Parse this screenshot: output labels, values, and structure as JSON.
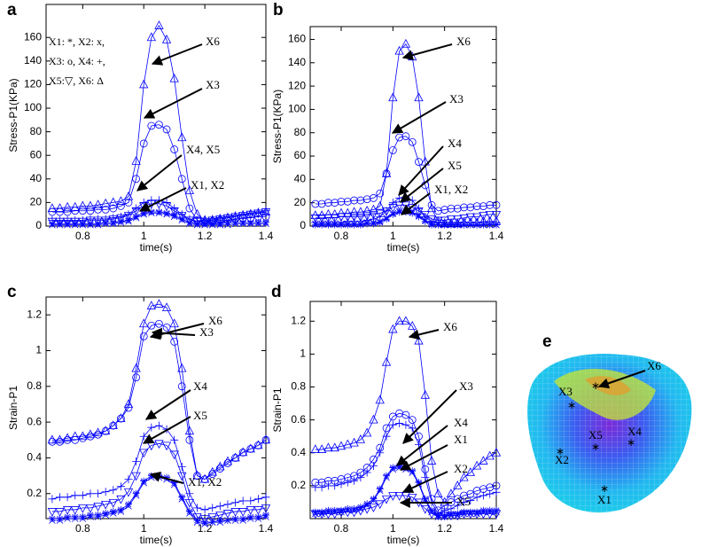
{
  "chart_data": [
    {
      "type": "line",
      "panel_label": "a",
      "y_label": "Stress-P1(KPa)",
      "x_label": "time(s)",
      "xlim": [
        0.68,
        1.4
      ],
      "xticks": [
        0.8,
        1,
        1.2,
        1.4
      ],
      "ylim": [
        0,
        188
      ],
      "yticks": [
        0,
        20,
        40,
        60,
        80,
        100,
        120,
        140,
        160
      ],
      "note": [
        "X1: *, X2: x,",
        "X3: o,  X4: +,",
        "X5:▽, X6: Δ"
      ],
      "annotations": [
        "X6",
        "X3",
        "X4, X5",
        "X1, X2"
      ],
      "x": [
        0.7,
        0.725,
        0.75,
        0.775,
        0.8,
        0.825,
        0.85,
        0.875,
        0.9,
        0.925,
        0.95,
        0.975,
        1.0,
        1.025,
        1.05,
        1.075,
        1.1,
        1.125,
        1.15,
        1.175,
        1.2,
        1.225,
        1.25,
        1.275,
        1.3,
        1.325,
        1.35,
        1.375,
        1.4
      ],
      "series": [
        {
          "marker": "triangle",
          "color": "#0000ff",
          "values": [
            15,
            15,
            16,
            16,
            17,
            17,
            18,
            19,
            20,
            21,
            25,
            55,
            120,
            160,
            170,
            158,
            125,
            75,
            30,
            10,
            5,
            5,
            6,
            7,
            8,
            9,
            10,
            11,
            12
          ]
        },
        {
          "marker": "circle",
          "color": "#0000ff",
          "values": [
            12,
            12,
            12,
            13,
            13,
            13,
            14,
            14,
            15,
            17,
            20,
            40,
            70,
            85,
            86,
            82,
            65,
            40,
            15,
            5,
            3,
            4,
            5,
            5,
            6,
            7,
            7,
            8,
            8
          ]
        },
        {
          "marker": "plus",
          "color": "#0000ff",
          "values": [
            5,
            5,
            5,
            5,
            5,
            6,
            6,
            6,
            7,
            8,
            10,
            15,
            20,
            22,
            22,
            20,
            15,
            10,
            6,
            4,
            5,
            6,
            7,
            8,
            9,
            10,
            11,
            12,
            13
          ]
        },
        {
          "marker": "down",
          "color": "#0000ff",
          "values": [
            4,
            4,
            4,
            4,
            4,
            5,
            5,
            5,
            6,
            7,
            9,
            13,
            17,
            19,
            19,
            17,
            13,
            9,
            5,
            4,
            4,
            5,
            6,
            7,
            8,
            9,
            10,
            11,
            12
          ]
        },
        {
          "marker": "star",
          "color": "#0000ff",
          "values": [
            2,
            2,
            2,
            2,
            2,
            2,
            2,
            3,
            3,
            4,
            5,
            8,
            11,
            12,
            12,
            11,
            9,
            6,
            3,
            2,
            2,
            2,
            2,
            3,
            3,
            3,
            3,
            3,
            3
          ]
        },
        {
          "marker": "x",
          "color": "#0000ff",
          "values": [
            1,
            1,
            1,
            1,
            1,
            1,
            1,
            2,
            2,
            3,
            4,
            7,
            10,
            11,
            11,
            10,
            8,
            5,
            2,
            1,
            1,
            1,
            1,
            1,
            2,
            2,
            2,
            2,
            2
          ]
        }
      ]
    },
    {
      "type": "line",
      "panel_label": "b",
      "y_label": "Stress-P1(KPa)",
      "x_label": "time(s)",
      "xlim": [
        0.68,
        1.4
      ],
      "xticks": [
        0.8,
        1,
        1.2,
        1.4
      ],
      "ylim": [
        0,
        171
      ],
      "yticks": [
        0,
        20,
        40,
        60,
        80,
        100,
        120,
        140,
        160
      ],
      "annotations": [
        "X6",
        "X3",
        "X4",
        "X5",
        "X1, X2"
      ],
      "x": [
        0.7,
        0.725,
        0.75,
        0.775,
        0.8,
        0.825,
        0.85,
        0.875,
        0.9,
        0.925,
        0.95,
        0.975,
        1.0,
        1.025,
        1.05,
        1.075,
        1.1,
        1.125,
        1.15,
        1.175,
        1.2,
        1.225,
        1.25,
        1.275,
        1.3,
        1.325,
        1.35,
        1.375,
        1.4
      ],
      "series": [
        {
          "marker": "triangle",
          "color": "#0000ff",
          "values": [
            9,
            9,
            10,
            10,
            11,
            11,
            12,
            12,
            13,
            14,
            17,
            45,
            110,
            150,
            156,
            145,
            110,
            55,
            15,
            4,
            2,
            2,
            2,
            3,
            3,
            3,
            4,
            4,
            4
          ]
        },
        {
          "marker": "circle",
          "color": "#0000ff",
          "values": [
            19,
            19,
            20,
            20,
            21,
            21,
            22,
            22,
            23,
            24,
            28,
            45,
            65,
            76,
            77,
            72,
            55,
            35,
            18,
            13,
            14,
            15,
            15,
            16,
            16,
            17,
            17,
            18,
            18
          ]
        },
        {
          "marker": "plus",
          "color": "#0000ff",
          "values": [
            3,
            3,
            3,
            3,
            3,
            4,
            4,
            4,
            5,
            6,
            8,
            13,
            20,
            24,
            25,
            22,
            15,
            8,
            4,
            3,
            3,
            3,
            3,
            3,
            3,
            3,
            3,
            3,
            3
          ]
        },
        {
          "marker": "down",
          "color": "#0000ff",
          "values": [
            7,
            7,
            7,
            7,
            8,
            8,
            8,
            8,
            9,
            10,
            11,
            13,
            16,
            18,
            18,
            16,
            13,
            10,
            6,
            5,
            5,
            6,
            6,
            7,
            8,
            8,
            9,
            10,
            10
          ]
        },
        {
          "marker": "star",
          "color": "#0000ff",
          "values": [
            1,
            1,
            1,
            1,
            1,
            1,
            1,
            1,
            2,
            2,
            3,
            6,
            10,
            12,
            12,
            11,
            8,
            4,
            1,
            1,
            1,
            1,
            1,
            1,
            1,
            1,
            1,
            1,
            1
          ]
        },
        {
          "marker": "x",
          "color": "#0000ff",
          "values": [
            2,
            2,
            2,
            2,
            2,
            2,
            2,
            2,
            3,
            3,
            4,
            7,
            11,
            13,
            13,
            12,
            9,
            5,
            2,
            1,
            1,
            1,
            1,
            1,
            1,
            1,
            1,
            1,
            1
          ]
        }
      ]
    },
    {
      "type": "line",
      "panel_label": "c",
      "y_label": "Strain-P1",
      "x_label": "time(s)",
      "xlim": [
        0.68,
        1.4
      ],
      "xticks": [
        0.8,
        1,
        1.2,
        1.4
      ],
      "ylim": [
        0.06,
        1.3
      ],
      "yticks": [
        0.2,
        0.4,
        0.6,
        0.8,
        1,
        1.2
      ],
      "annotations": [
        "X6",
        "X3",
        "X4",
        "X5",
        "X1, X2"
      ],
      "x": [
        0.7,
        0.725,
        0.75,
        0.775,
        0.8,
        0.825,
        0.85,
        0.875,
        0.9,
        0.925,
        0.95,
        0.975,
        1.0,
        1.025,
        1.05,
        1.075,
        1.1,
        1.125,
        1.15,
        1.175,
        1.2,
        1.225,
        1.25,
        1.275,
        1.3,
        1.325,
        1.35,
        1.375,
        1.4
      ],
      "series": [
        {
          "marker": "triangle",
          "color": "#0000ff",
          "values": [
            0.5,
            0.5,
            0.51,
            0.52,
            0.52,
            0.53,
            0.54,
            0.55,
            0.58,
            0.62,
            0.7,
            0.9,
            1.15,
            1.25,
            1.26,
            1.24,
            1.15,
            0.9,
            0.55,
            0.3,
            0.28,
            0.32,
            0.35,
            0.38,
            0.4,
            0.43,
            0.45,
            0.47,
            0.5
          ]
        },
        {
          "marker": "circle",
          "color": "#0000ff",
          "values": [
            0.49,
            0.49,
            0.5,
            0.5,
            0.51,
            0.52,
            0.53,
            0.55,
            0.58,
            0.62,
            0.68,
            0.85,
            1.08,
            1.14,
            1.15,
            1.13,
            1.05,
            0.8,
            0.5,
            0.3,
            0.28,
            0.31,
            0.34,
            0.37,
            0.4,
            0.43,
            0.45,
            0.47,
            0.5
          ]
        },
        {
          "marker": "plus",
          "color": "#0000ff",
          "values": [
            0.17,
            0.18,
            0.18,
            0.19,
            0.19,
            0.2,
            0.2,
            0.21,
            0.22,
            0.24,
            0.28,
            0.38,
            0.52,
            0.57,
            0.58,
            0.56,
            0.5,
            0.35,
            0.2,
            0.12,
            0.11,
            0.12,
            0.13,
            0.14,
            0.15,
            0.16,
            0.16,
            0.17,
            0.18
          ]
        },
        {
          "marker": "down",
          "color": "#0000ff",
          "values": [
            0.1,
            0.1,
            0.11,
            0.11,
            0.12,
            0.12,
            0.13,
            0.14,
            0.15,
            0.17,
            0.21,
            0.3,
            0.43,
            0.47,
            0.48,
            0.47,
            0.42,
            0.3,
            0.15,
            0.07,
            0.06,
            0.07,
            0.08,
            0.09,
            0.1,
            0.1,
            0.11,
            0.11,
            0.12
          ]
        },
        {
          "marker": "star",
          "color": "#0000ff",
          "values": [
            0.06,
            0.06,
            0.07,
            0.07,
            0.07,
            0.08,
            0.08,
            0.09,
            0.1,
            0.11,
            0.14,
            0.2,
            0.27,
            0.3,
            0.3,
            0.29,
            0.26,
            0.18,
            0.1,
            0.05,
            0.04,
            0.04,
            0.05,
            0.05,
            0.06,
            0.06,
            0.07,
            0.07,
            0.08
          ]
        },
        {
          "marker": "x",
          "color": "#0000ff",
          "values": [
            0.05,
            0.05,
            0.06,
            0.06,
            0.06,
            0.07,
            0.07,
            0.08,
            0.09,
            0.1,
            0.13,
            0.19,
            0.26,
            0.29,
            0.29,
            0.28,
            0.25,
            0.17,
            0.09,
            0.04,
            0.03,
            0.04,
            0.04,
            0.05,
            0.05,
            0.05,
            0.06,
            0.06,
            0.07
          ]
        }
      ]
    },
    {
      "type": "line",
      "panel_label": "d",
      "y_label": "Strain-P1",
      "x_label": "time(s)",
      "xlim": [
        0.68,
        1.4
      ],
      "xticks": [
        0.8,
        1,
        1.2,
        1.4
      ],
      "ylim": [
        0,
        1.32
      ],
      "yticks": [
        0.2,
        0.4,
        0.6,
        0.8,
        1,
        1.2
      ],
      "annotations": [
        "X6",
        "X3",
        "X4",
        "X1",
        "X2",
        "X5"
      ],
      "x": [
        0.7,
        0.725,
        0.75,
        0.775,
        0.8,
        0.825,
        0.85,
        0.875,
        0.9,
        0.925,
        0.95,
        0.975,
        1.0,
        1.025,
        1.05,
        1.075,
        1.1,
        1.125,
        1.15,
        1.175,
        1.2,
        1.225,
        1.25,
        1.275,
        1.3,
        1.325,
        1.35,
        1.375,
        1.4
      ],
      "series": [
        {
          "marker": "triangle",
          "color": "#0000ff",
          "values": [
            0.42,
            0.42,
            0.43,
            0.43,
            0.44,
            0.45,
            0.46,
            0.48,
            0.52,
            0.6,
            0.72,
            0.95,
            1.15,
            1.2,
            1.2,
            1.17,
            1.08,
            0.75,
            0.35,
            0.15,
            0.1,
            0.15,
            0.2,
            0.25,
            0.28,
            0.32,
            0.35,
            0.38,
            0.4
          ]
        },
        {
          "marker": "circle",
          "color": "#0000ff",
          "values": [
            0.22,
            0.22,
            0.23,
            0.23,
            0.24,
            0.25,
            0.26,
            0.28,
            0.31,
            0.36,
            0.43,
            0.55,
            0.62,
            0.64,
            0.63,
            0.6,
            0.5,
            0.3,
            0.12,
            0.05,
            0.08,
            0.1,
            0.12,
            0.14,
            0.15,
            0.17,
            0.18,
            0.19,
            0.2
          ]
        },
        {
          "marker": "plus",
          "color": "#0000ff",
          "values": [
            0.19,
            0.19,
            0.2,
            0.2,
            0.21,
            0.22,
            0.23,
            0.25,
            0.28,
            0.32,
            0.4,
            0.5,
            0.57,
            0.58,
            0.57,
            0.55,
            0.45,
            0.25,
            0.1,
            0.03,
            0.05,
            0.06,
            0.08,
            0.1,
            0.11,
            0.13,
            0.14,
            0.15,
            0.16
          ]
        },
        {
          "marker": "star",
          "color": "#0000ff",
          "values": [
            0.04,
            0.04,
            0.05,
            0.05,
            0.05,
            0.06,
            0.06,
            0.07,
            0.09,
            0.12,
            0.18,
            0.26,
            0.31,
            0.32,
            0.31,
            0.29,
            0.22,
            0.12,
            0.05,
            0.02,
            0.02,
            0.03,
            0.03,
            0.04,
            0.04,
            0.04,
            0.05,
            0.05,
            0.05
          ]
        },
        {
          "marker": "x",
          "color": "#0000ff",
          "values": [
            0.03,
            0.03,
            0.04,
            0.04,
            0.04,
            0.05,
            0.05,
            0.06,
            0.08,
            0.11,
            0.17,
            0.25,
            0.3,
            0.31,
            0.3,
            0.28,
            0.21,
            0.11,
            0.04,
            0.01,
            0.01,
            0.02,
            0.02,
            0.03,
            0.03,
            0.03,
            0.04,
            0.04,
            0.04
          ]
        },
        {
          "marker": "down",
          "color": "#0000ff",
          "values": [
            0.03,
            0.03,
            0.03,
            0.03,
            0.04,
            0.04,
            0.04,
            0.05,
            0.06,
            0.07,
            0.09,
            0.12,
            0.14,
            0.14,
            0.14,
            0.13,
            0.1,
            0.06,
            0.03,
            0.02,
            0.02,
            0.02,
            0.02,
            0.03,
            0.03,
            0.03,
            0.03,
            0.03,
            0.03
          ]
        }
      ]
    }
  ],
  "figure_e": {
    "panel_label": "e",
    "labels": [
      "X6",
      "X3",
      "X5",
      "X4",
      "X2",
      "X1"
    ]
  }
}
